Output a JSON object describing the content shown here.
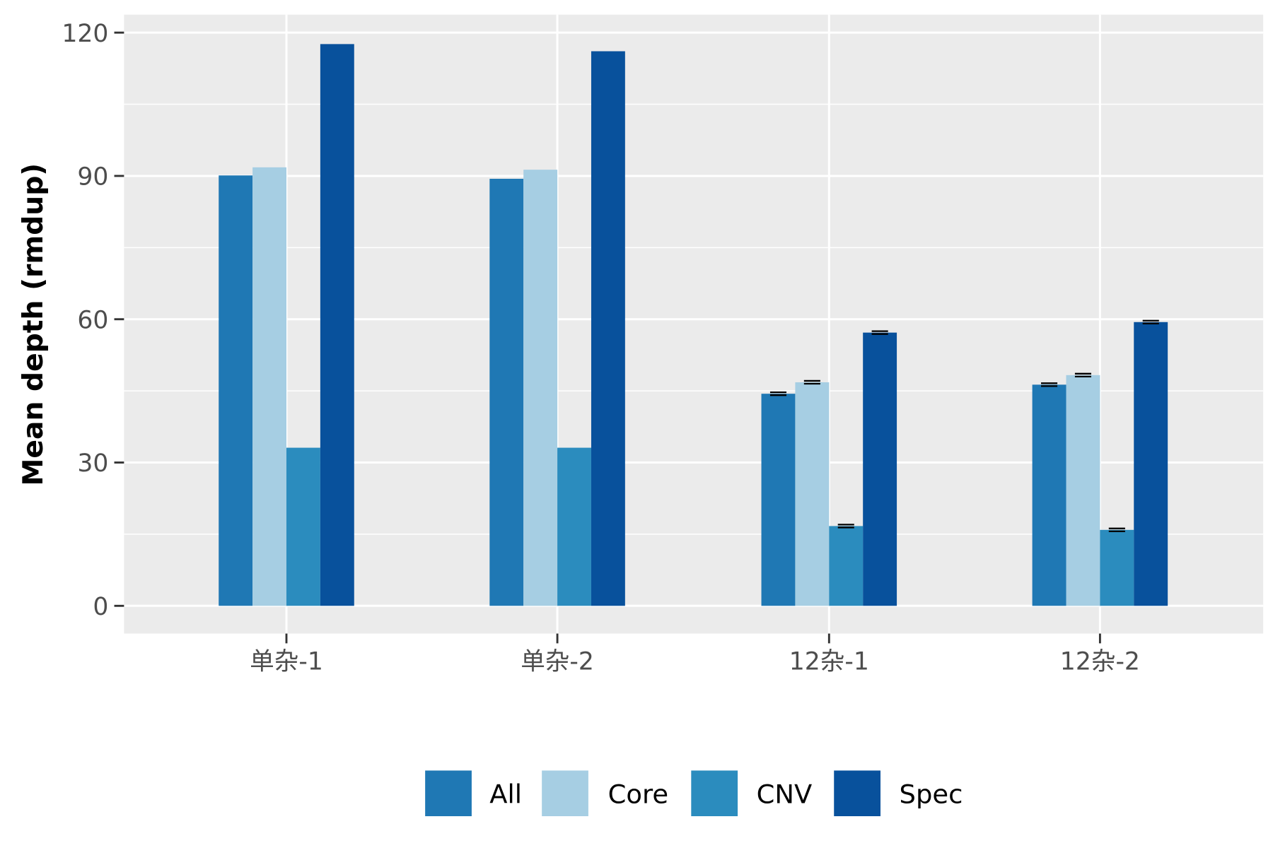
{
  "chart_data": {
    "type": "bar",
    "title": "",
    "xlabel": "",
    "ylabel": "Mean depth (rmdup)",
    "ylim": [
      -5,
      122
    ],
    "yticks": [
      0,
      30,
      60,
      90,
      120
    ],
    "ytick_labels": [
      "0",
      "30",
      "60",
      "90",
      "120"
    ],
    "grid": true,
    "legend_position": "bottom",
    "categories": [
      "单杂-1",
      "单杂-2",
      "12杂-1",
      "12杂-2"
    ],
    "series": [
      {
        "name": "All",
        "color": "#1f78b4",
        "values": [
          90.1,
          89.4,
          44.4,
          46.3
        ],
        "error": [
          0,
          0,
          0.3,
          0.3
        ]
      },
      {
        "name": "Core",
        "color": "#a6cee3",
        "values": [
          91.8,
          91.3,
          46.8,
          48.3
        ],
        "error": [
          0,
          0,
          0.3,
          0.3
        ]
      },
      {
        "name": "CNV",
        "color": "#2b8cbe",
        "values": [
          33.1,
          33.1,
          16.7,
          15.9
        ],
        "error": [
          0,
          0,
          0.3,
          0.3
        ]
      },
      {
        "name": "Spec",
        "color": "#08519c",
        "values": [
          117.6,
          116.1,
          57.2,
          59.4
        ],
        "error": [
          0,
          0,
          0.3,
          0.3
        ]
      }
    ]
  }
}
